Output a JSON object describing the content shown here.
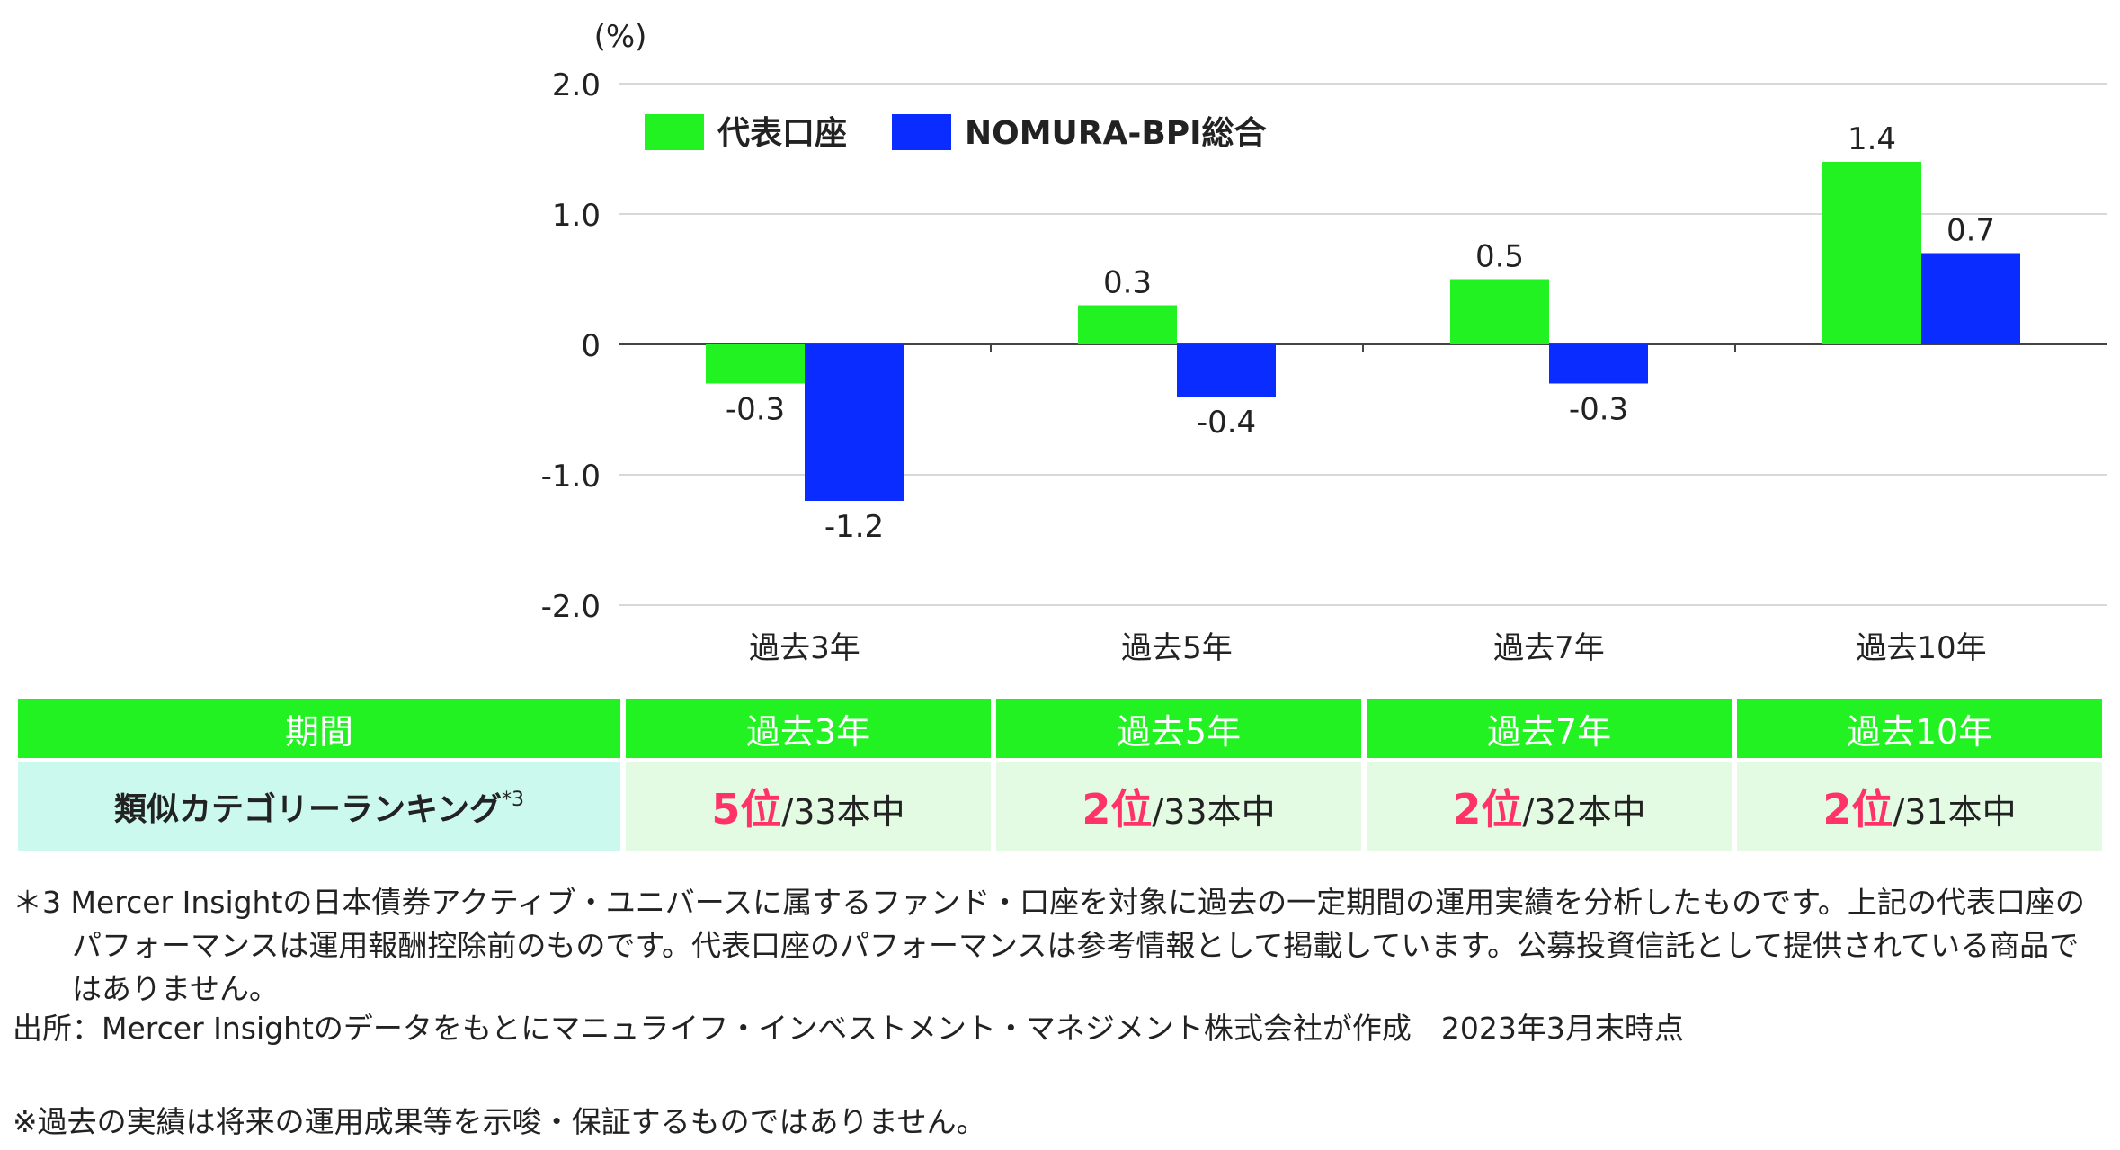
{
  "chart_data": {
    "type": "bar",
    "unit_label": "(%)",
    "categories": [
      "過去3年",
      "過去5年",
      "過去7年",
      "過去10年"
    ],
    "series": [
      {
        "name": "代表口座",
        "color": "#22f222",
        "values": [
          -0.3,
          0.3,
          0.5,
          1.4
        ]
      },
      {
        "name": "NOMURA-BPI総合",
        "color": "#0a2cff",
        "values": [
          -1.2,
          -0.4,
          -0.3,
          0.7
        ]
      }
    ],
    "data_labels": [
      [
        "-0.3",
        "0.3",
        "0.5",
        "1.4"
      ],
      [
        "-1.2",
        "-0.4",
        "-0.3",
        "0.7"
      ]
    ],
    "yticks": [
      2.0,
      1.0,
      0,
      -1.0,
      -2.0
    ],
    "ytick_labels": [
      "2.0",
      "1.0",
      "0",
      "-1.0",
      "-2.0"
    ],
    "ylim": [
      -2.0,
      2.0
    ],
    "grid": true,
    "legend_position": "top-left"
  },
  "table": {
    "header_label": "期間",
    "columns": [
      "過去3年",
      "過去5年",
      "過去7年",
      "過去10年"
    ],
    "row_label": "類似カテゴリーランキング",
    "row_label_sup": "*3",
    "cells": [
      {
        "rank": "5位",
        "total": "/33本中"
      },
      {
        "rank": "2位",
        "total": "/33本中"
      },
      {
        "rank": "2位",
        "total": "/32本中"
      },
      {
        "rank": "2位",
        "total": "/31本中"
      }
    ]
  },
  "notes": {
    "note3": "＊3 Mercer Insightの日本債券アクティブ・ユニバースに属するファンド・口座を対象に過去の一定期間の運用実績を分析したものです。上記の代表口座のパフォーマンスは運用報酬控除前のものです。代表口座のパフォーマンスは参考情報として掲載しています。公募投資信託として提供されている商品ではありません。",
    "source": "出所：Mercer Insightのデータをもとにマニュライフ・インベストメント・マネジメント株式会社が作成　2023年3月末時点",
    "disclaimer": "※過去の実績は将来の運用成果等を示唆・保証するものではありません。"
  }
}
